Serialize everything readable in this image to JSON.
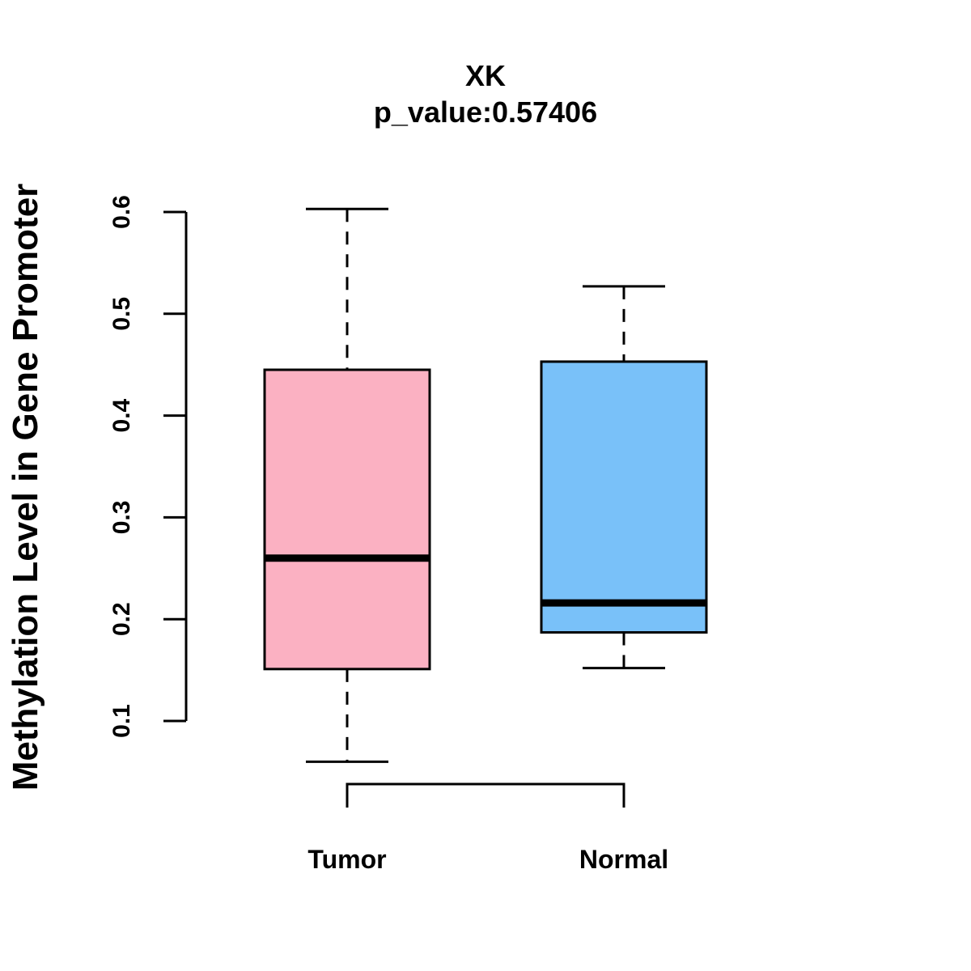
{
  "chart_data": {
    "type": "boxplot",
    "title": "XK",
    "subtitle": "p_value:0.57406",
    "xlabel": "",
    "ylabel": "Methylation Level in Gene Promoter",
    "ylim": [
      0.1,
      0.6
    ],
    "yticks": [
      0.1,
      0.2,
      0.3,
      0.4,
      0.5,
      0.6
    ],
    "ytick_labels": [
      "0.1",
      "0.2",
      "0.3",
      "0.4",
      "0.5",
      "0.6"
    ],
    "categories": [
      "Tumor",
      "Normal"
    ],
    "boxes": [
      {
        "name": "Tumor",
        "min": 0.06,
        "q1": 0.151,
        "median": 0.26,
        "q3": 0.445,
        "max": 0.603,
        "color": "#FBB1C2"
      },
      {
        "name": "Normal",
        "min": 0.152,
        "q1": 0.187,
        "median": 0.216,
        "q3": 0.453,
        "max": 0.527,
        "color": "#79C1F9"
      }
    ],
    "comparison_bracket": [
      "Tumor",
      "Normal"
    ],
    "grid": false
  }
}
